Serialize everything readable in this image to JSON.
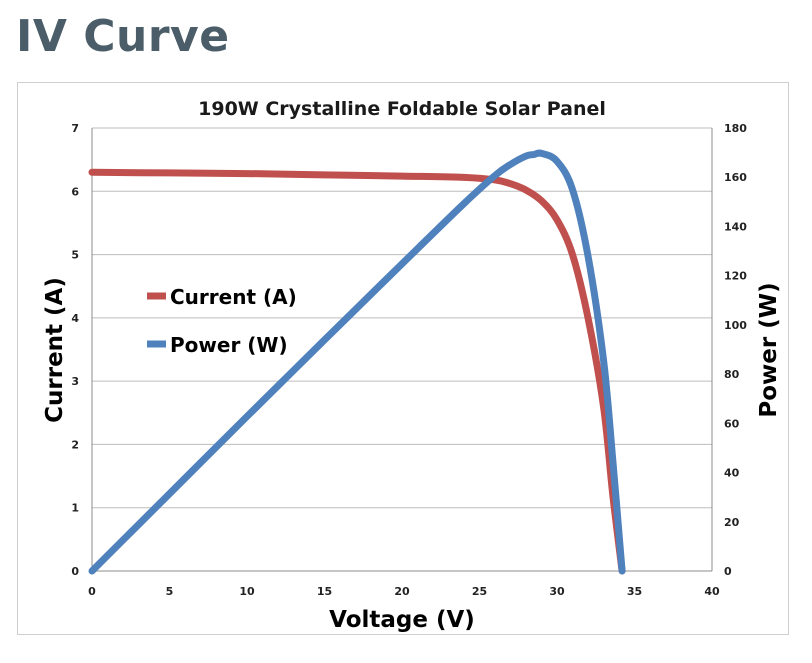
{
  "page": {
    "title": "IV Curve"
  },
  "chart_data": {
    "type": "line",
    "title": "190W Crystalline Foldable Solar Panel",
    "xlabel": "Voltage (V)",
    "ylabel": "Current (A)",
    "y2label": "Power (W)",
    "xlim": [
      0,
      40
    ],
    "ylim": [
      0,
      7
    ],
    "y2lim": [
      0,
      180
    ],
    "x_ticks": [
      0,
      5,
      10,
      15,
      20,
      25,
      30,
      35,
      40
    ],
    "y_ticks": [
      0,
      1,
      2,
      3,
      4,
      5,
      6,
      7
    ],
    "y2_ticks": [
      0,
      20,
      40,
      60,
      80,
      100,
      120,
      140,
      160,
      180
    ],
    "grid": true,
    "legend_position": "middle-left",
    "series": [
      {
        "name": "Current (A)",
        "axis": "left",
        "color": "#c0504d",
        "x": [
          0,
          5,
          10,
          15,
          20,
          24,
          26,
          27,
          28,
          29,
          30,
          31,
          32,
          33,
          33.6,
          34.2
        ],
        "y": [
          6.3,
          6.29,
          6.28,
          6.26,
          6.24,
          6.22,
          6.18,
          6.12,
          6.02,
          5.85,
          5.55,
          5.0,
          4.0,
          2.6,
          1.2,
          0
        ]
      },
      {
        "name": "Power (W)",
        "axis": "right",
        "color": "#4f81bd",
        "x": [
          0,
          5,
          10,
          15,
          20,
          24,
          26,
          27,
          28,
          28.5,
          29,
          30,
          31,
          32,
          33,
          33.6,
          34.2
        ],
        "y": [
          0,
          31.4,
          62.8,
          93.9,
          124.8,
          149.3,
          160.7,
          165.2,
          168.6,
          169.2,
          169.7,
          166.5,
          155,
          128,
          85.8,
          45,
          0
        ]
      }
    ]
  }
}
